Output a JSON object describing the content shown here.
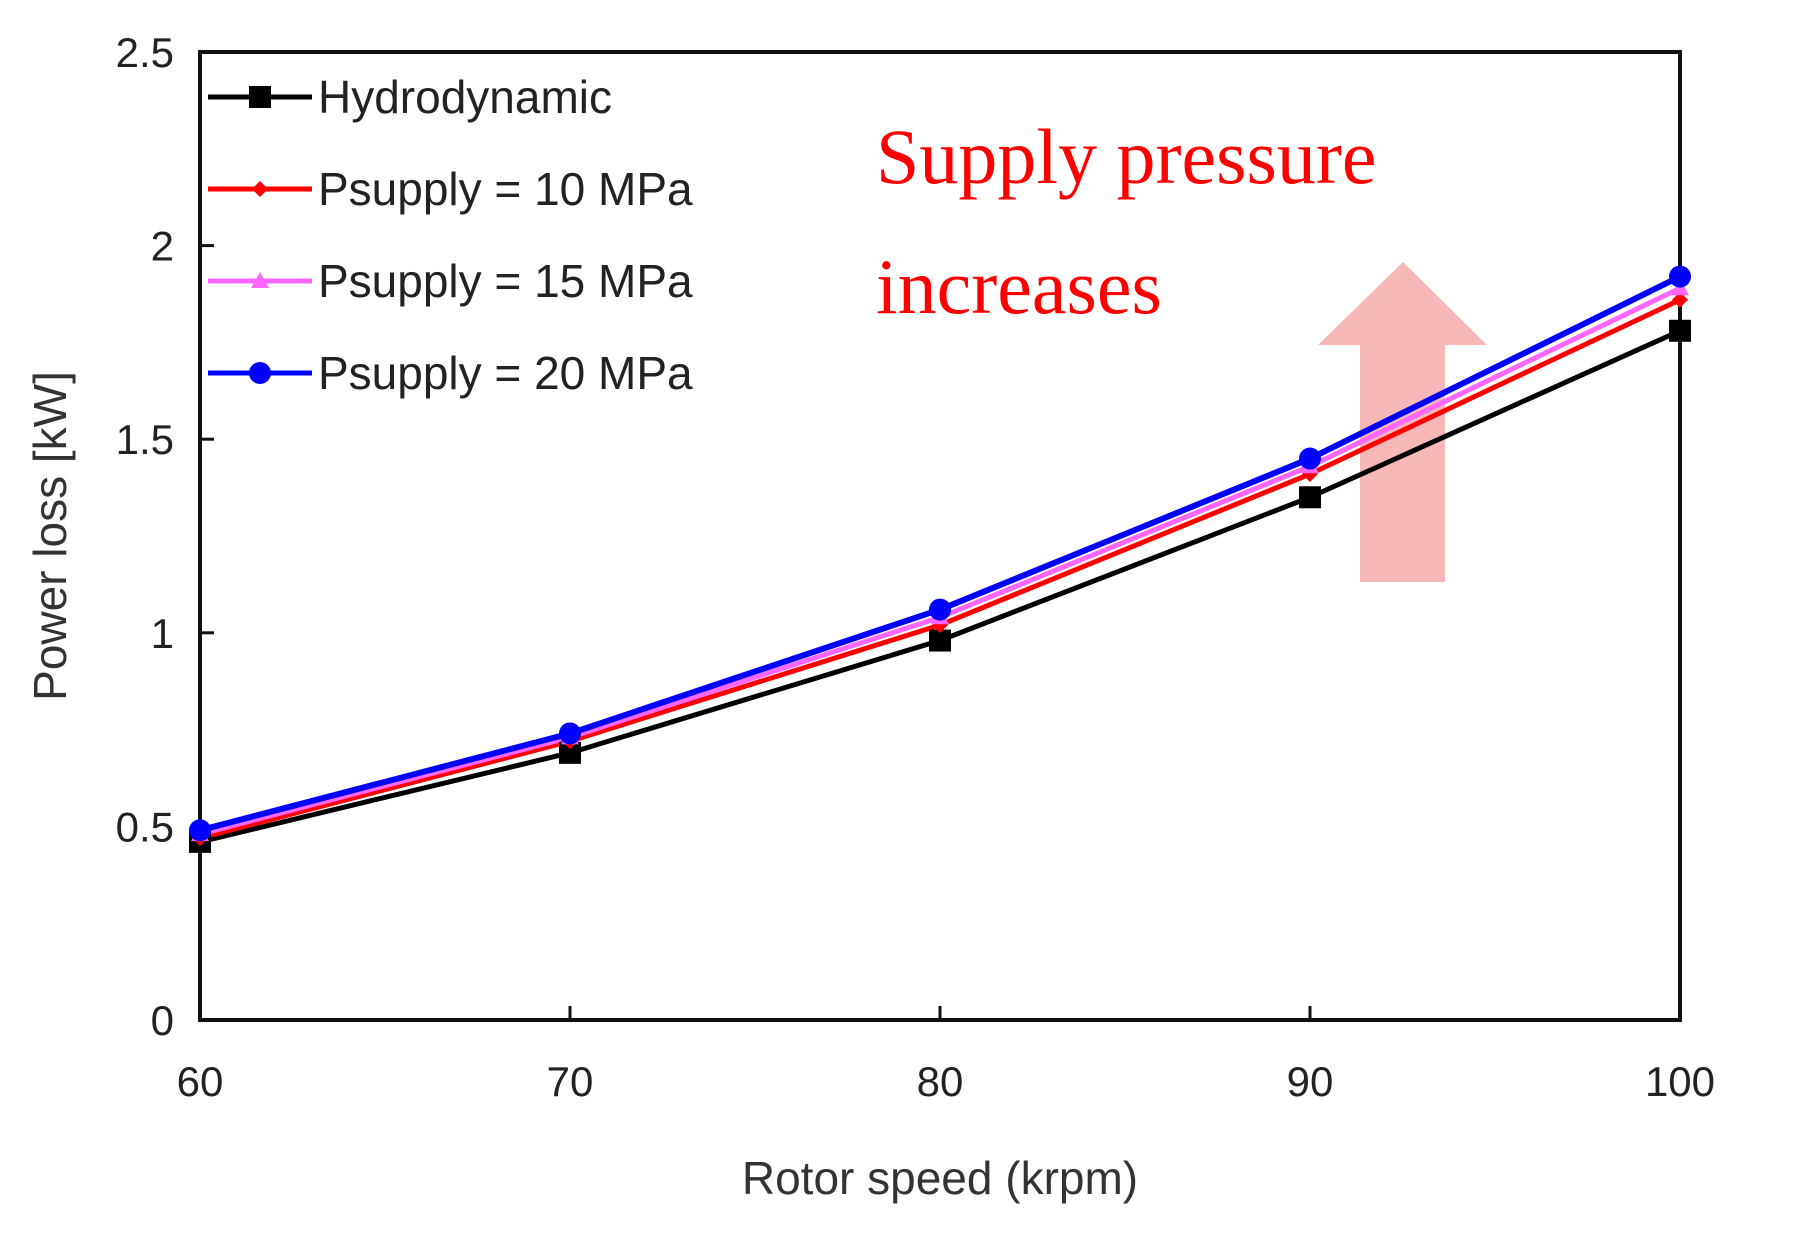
{
  "chart_data": {
    "type": "line",
    "title": "",
    "xlabel": "Rotor speed (krpm)",
    "ylabel": "Power loss [kW]",
    "x": [
      60,
      70,
      80,
      90,
      100
    ],
    "xlim": [
      60,
      100
    ],
    "ylim": [
      0,
      2.5
    ],
    "xticks": [
      "60",
      "70",
      "80",
      "90",
      "100"
    ],
    "yticks": [
      "0",
      "0.5",
      "1",
      "1.5",
      "2",
      "2.5"
    ],
    "grid": false,
    "legend_position": "top-left",
    "series": [
      {
        "name": "Hydrodynamic",
        "values": [
          0.46,
          0.69,
          0.98,
          1.35,
          1.78
        ],
        "color": "#000000",
        "marker": "square"
      },
      {
        "name": "Psupply = 10 MPa",
        "values": [
          0.47,
          0.72,
          1.02,
          1.41,
          1.86
        ],
        "color": "#ff0000",
        "marker": "diamond"
      },
      {
        "name": "Psupply = 15 MPa",
        "values": [
          0.48,
          0.73,
          1.04,
          1.43,
          1.89
        ],
        "color": "#ff66ff",
        "marker": "triangle"
      },
      {
        "name": "Psupply = 20 MPa",
        "values": [
          0.49,
          0.74,
          1.06,
          1.45,
          1.92
        ],
        "color": "#0000ff",
        "marker": "circle"
      }
    ],
    "annotation": {
      "lines": [
        "Supply pressure",
        "increases"
      ],
      "color": "#ff0000",
      "arrow_color": "#f8b4b4",
      "arrow_direction": "up"
    }
  }
}
